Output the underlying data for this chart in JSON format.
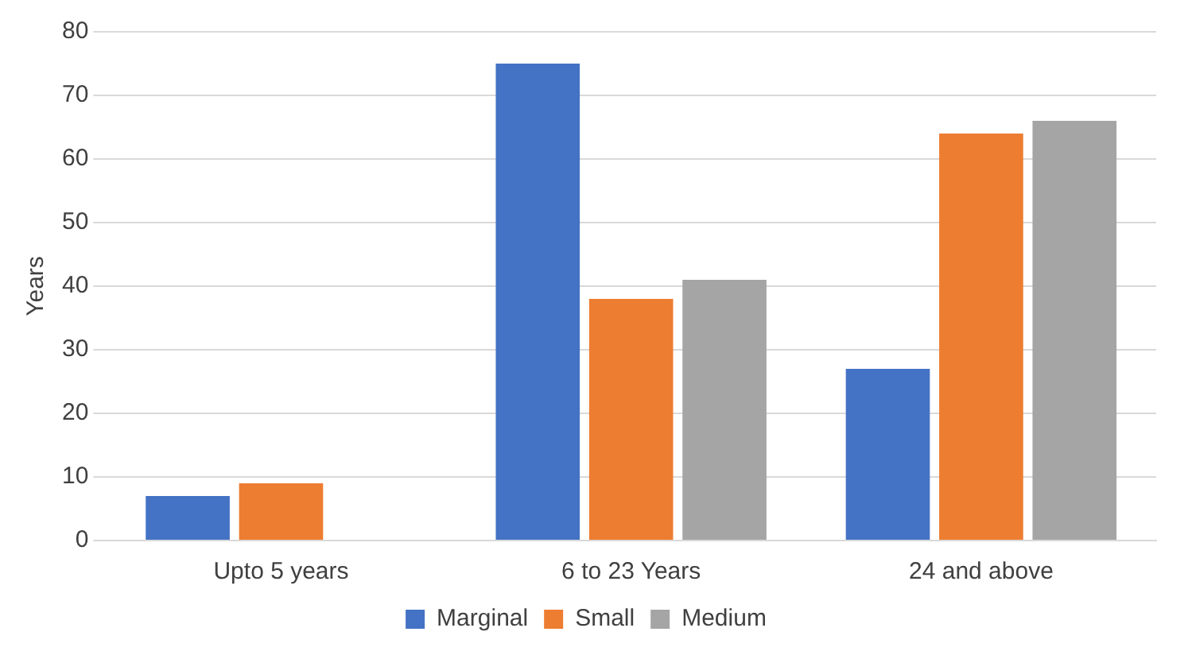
{
  "chart_data": {
    "type": "bar",
    "ylabel": "Years",
    "categories": [
      "Upto 5 years",
      "6 to 23 Years",
      "24 and above"
    ],
    "series": [
      {
        "name": "Marginal",
        "color": "#4472c4",
        "values": [
          7,
          75,
          27
        ]
      },
      {
        "name": "Small",
        "color": "#ed7d31",
        "values": [
          9,
          38,
          64
        ]
      },
      {
        "name": "Medium",
        "color": "#a5a5a5",
        "values": [
          0,
          41,
          66
        ]
      }
    ],
    "ylim": [
      0,
      80
    ],
    "yticks": [
      0,
      10,
      20,
      30,
      40,
      50,
      60,
      70,
      80
    ],
    "grid": "y",
    "legend": "bottom"
  }
}
